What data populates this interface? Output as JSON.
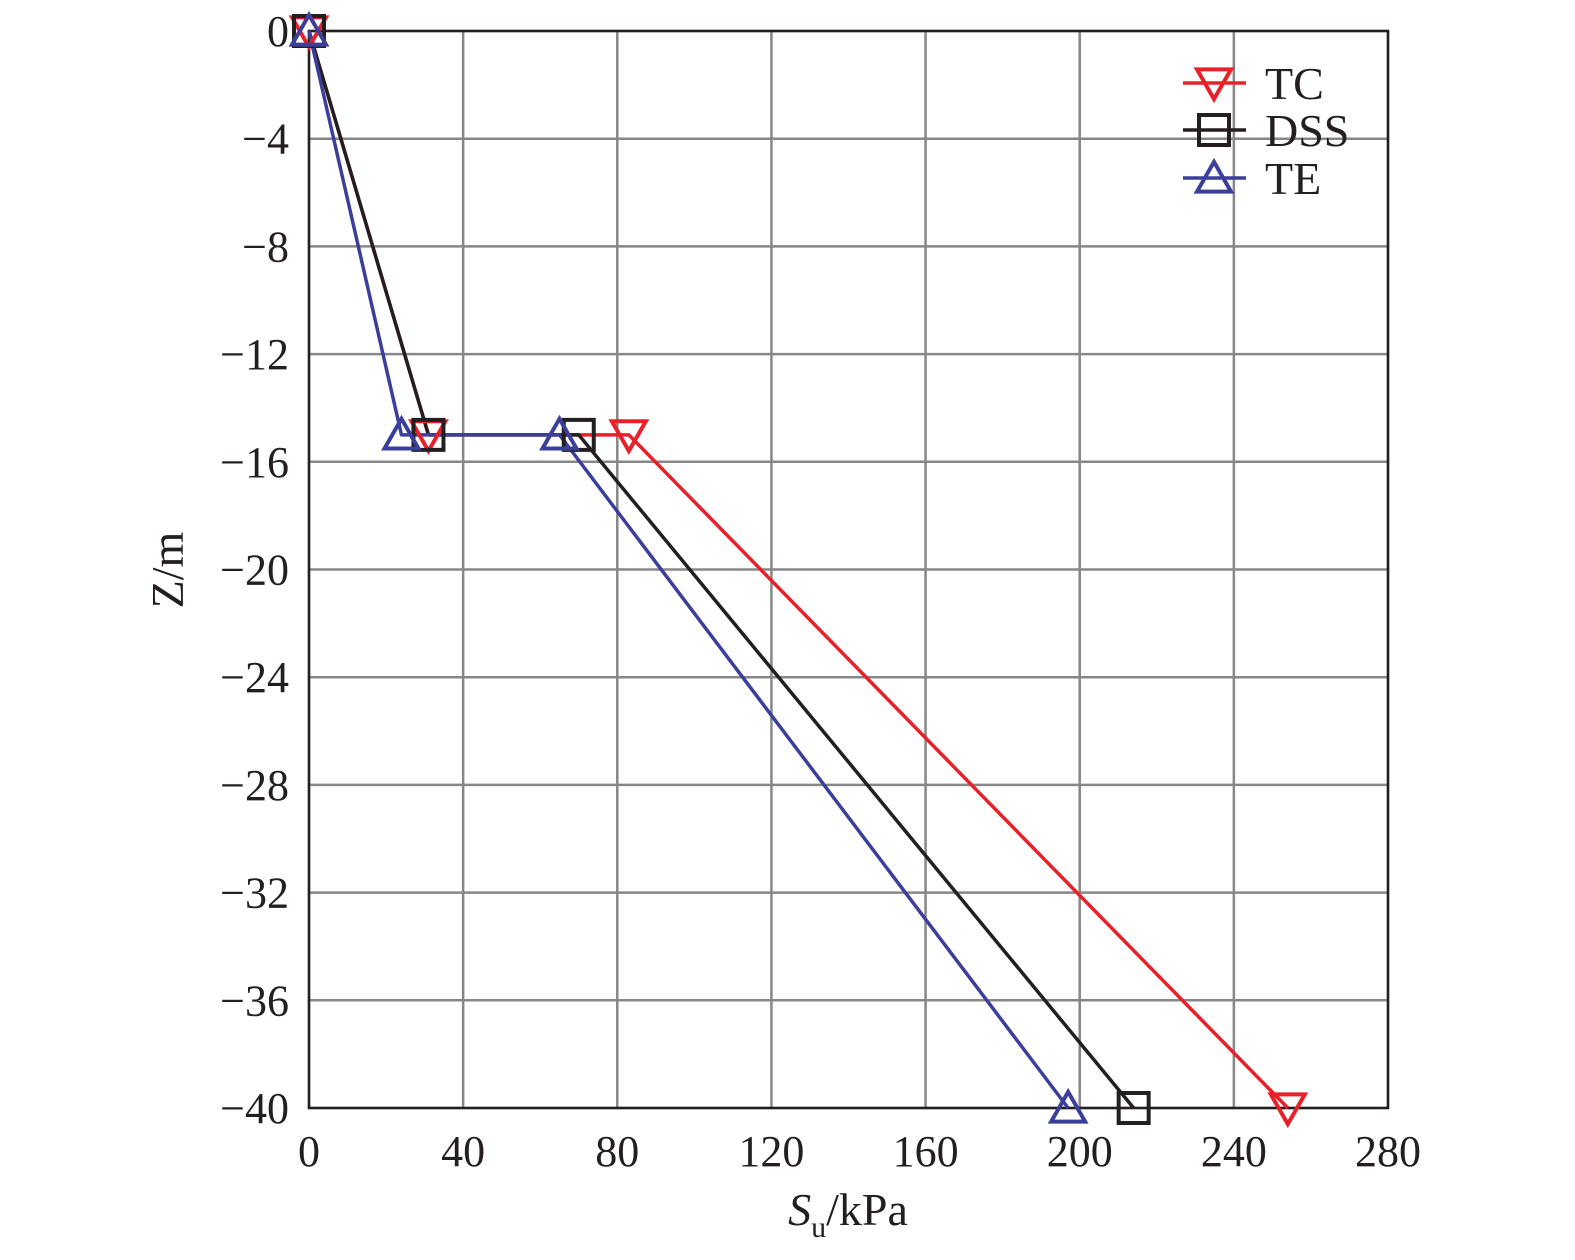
{
  "chart_data": {
    "type": "line",
    "xlabel": {
      "main": "S",
      "sub": "u",
      "unit": "/kPa"
    },
    "ylabel": "Z/m",
    "xlim": [
      0,
      280
    ],
    "ylim": [
      -40,
      0
    ],
    "xticks": [
      0,
      40,
      80,
      120,
      160,
      200,
      240,
      280
    ],
    "yticks": [
      0,
      -4,
      -8,
      -12,
      -16,
      -20,
      -24,
      -28,
      -32,
      -36,
      -40
    ],
    "xtick_labels": [
      "0",
      "40",
      "80",
      "120",
      "160",
      "200",
      "240",
      "280"
    ],
    "ytick_labels": [
      "0",
      "−4",
      "−8",
      "−12",
      "−16",
      "−20",
      "−24",
      "−28",
      "−32",
      "−36",
      "−40"
    ],
    "grid": true,
    "legend_position": "top-right",
    "series": [
      {
        "name": "TC",
        "marker": "triangle-down",
        "color": "#e8202a",
        "points": [
          [
            0,
            0
          ],
          [
            31,
            -15
          ],
          [
            83,
            -15
          ],
          [
            254,
            -40
          ]
        ]
      },
      {
        "name": "DSS",
        "marker": "square",
        "color": "#231f20",
        "points": [
          [
            0,
            0
          ],
          [
            31,
            -15
          ],
          [
            70,
            -15
          ],
          [
            214,
            -40
          ]
        ]
      },
      {
        "name": "TE",
        "marker": "triangle-up",
        "color": "#3b3f9a",
        "points": [
          [
            0,
            0
          ],
          [
            24,
            -15
          ],
          [
            65,
            -15
          ],
          [
            197,
            -40
          ]
        ]
      }
    ]
  }
}
